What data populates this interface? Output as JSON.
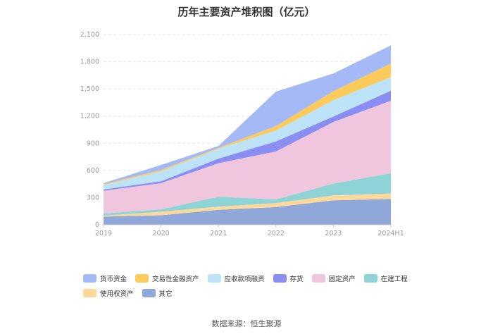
{
  "chart_data": {
    "type": "area",
    "stacked": true,
    "title": "历年主要资产堆积图（亿元）",
    "categories": [
      "2019",
      "2020",
      "2021",
      "2022",
      "2023",
      "2024H1"
    ],
    "ylim": [
      0,
      2100
    ],
    "yticks": [
      "0",
      "300",
      "600",
      "900",
      "1,200",
      "1,500",
      "1,800",
      "2,100"
    ],
    "grid": true,
    "series": [
      {
        "name": "其它",
        "color": "#8fa8d9",
        "values": [
          90,
          105,
          165,
          195,
          270,
          285
        ]
      },
      {
        "name": "使用权资产",
        "color": "#fcd89a",
        "values": [
          10,
          40,
          35,
          45,
          55,
          60
        ]
      },
      {
        "name": "在建工程",
        "color": "#8ed4d6",
        "values": [
          25,
          25,
          110,
          40,
          130,
          225
        ]
      },
      {
        "name": "固定资产",
        "color": "#f0c6de",
        "values": [
          250,
          290,
          370,
          530,
          680,
          800
        ]
      },
      {
        "name": "存货",
        "color": "#8a8df2",
        "values": [
          15,
          20,
          50,
          110,
          60,
          110
        ]
      },
      {
        "name": "应收款项融资",
        "color": "#bce3f7",
        "values": [
          50,
          110,
          110,
          120,
          180,
          150
        ]
      },
      {
        "name": "交易性金融资产",
        "color": "#fccb5c",
        "values": [
          10,
          15,
          10,
          50,
          100,
          150
        ]
      },
      {
        "name": "货币资金",
        "color": "#a5b9f7",
        "values": [
          10,
          55,
          20,
          380,
          195,
          200
        ]
      }
    ],
    "legend_order": [
      "货币资金",
      "交易性金融资产",
      "应收款项融资",
      "存货",
      "固定资产",
      "在建工程",
      "使用权资产",
      "其它"
    ]
  },
  "source": "数据来源：恒生聚源"
}
